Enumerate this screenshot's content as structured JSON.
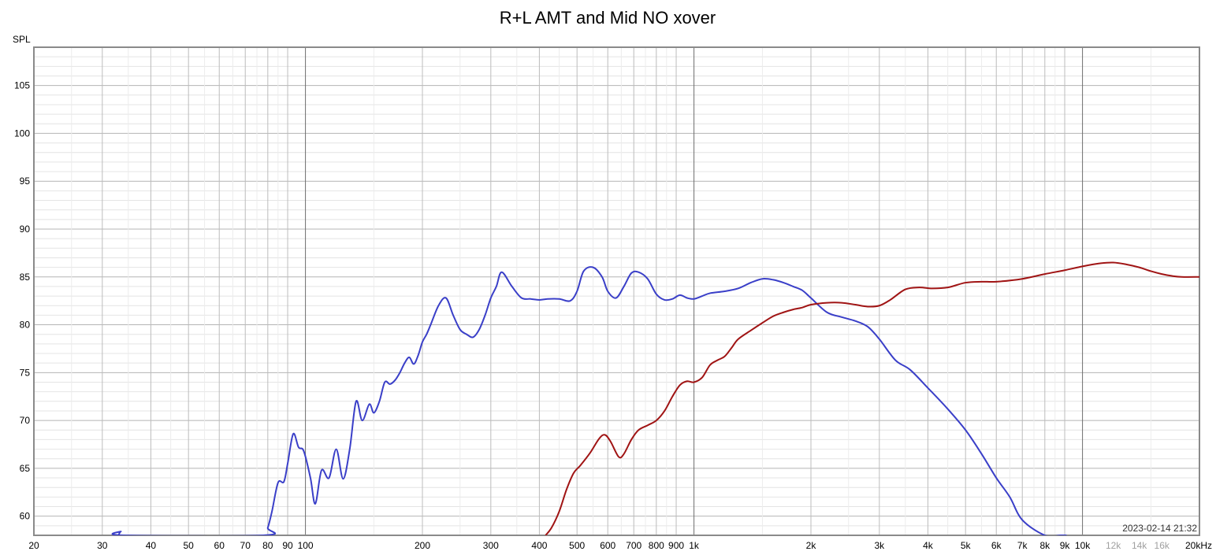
{
  "chart_data": {
    "type": "line",
    "title": "R+L AMT and Mid NO xover",
    "ylabel": "SPL",
    "xlabel": "",
    "x_scale": "log",
    "xlim": [
      20,
      20000
    ],
    "ylim": [
      58,
      109
    ],
    "grid": true,
    "timestamp": "2023-02-14 21:32",
    "y_ticks": [
      {
        "value": 60,
        "label": "60"
      },
      {
        "value": 65,
        "label": "65"
      },
      {
        "value": 70,
        "label": "70"
      },
      {
        "value": 75,
        "label": "75"
      },
      {
        "value": 80,
        "label": "80"
      },
      {
        "value": 85,
        "label": "85"
      },
      {
        "value": 90,
        "label": "90"
      },
      {
        "value": 95,
        "label": "95"
      },
      {
        "value": 100,
        "label": "100"
      },
      {
        "value": 105,
        "label": "105"
      }
    ],
    "x_ticks": [
      {
        "value": 20,
        "label": "20"
      },
      {
        "value": 30,
        "label": "30"
      },
      {
        "value": 40,
        "label": "40"
      },
      {
        "value": 50,
        "label": "50"
      },
      {
        "value": 60,
        "label": "60"
      },
      {
        "value": 70,
        "label": "70"
      },
      {
        "value": 80,
        "label": "80"
      },
      {
        "value": 90,
        "label": "90"
      },
      {
        "value": 100,
        "label": "100"
      },
      {
        "value": 200,
        "label": "200"
      },
      {
        "value": 300,
        "label": "300"
      },
      {
        "value": 400,
        "label": "400"
      },
      {
        "value": 500,
        "label": "500"
      },
      {
        "value": 600,
        "label": "600"
      },
      {
        "value": 700,
        "label": "700"
      },
      {
        "value": 800,
        "label": "800"
      },
      {
        "value": 900,
        "label": "900"
      },
      {
        "value": 1000,
        "label": "1k"
      },
      {
        "value": 2000,
        "label": "2k"
      },
      {
        "value": 3000,
        "label": "3k"
      },
      {
        "value": 4000,
        "label": "4k"
      },
      {
        "value": 5000,
        "label": "5k"
      },
      {
        "value": 6000,
        "label": "6k"
      },
      {
        "value": 7000,
        "label": "7k"
      },
      {
        "value": 8000,
        "label": "8k"
      },
      {
        "value": 9000,
        "label": "9k"
      },
      {
        "value": 10000,
        "label": "10k"
      },
      {
        "value": 12000,
        "label": "12k",
        "muted": true
      },
      {
        "value": 14000,
        "label": "14k",
        "muted": true
      },
      {
        "value": 16000,
        "label": "16k",
        "muted": true
      },
      {
        "value": 20000,
        "label": "20kHz"
      }
    ],
    "series": [
      {
        "color": "#3a3fc8",
        "x": [
          33,
          33.5,
          34,
          78,
          80,
          82,
          85,
          88,
          90,
          93,
          96,
          99,
          103,
          106,
          110,
          115,
          120,
          125,
          130,
          135,
          140,
          146,
          150,
          155,
          160,
          165,
          170,
          175,
          180,
          185,
          190,
          195,
          200,
          205,
          210,
          220,
          230,
          240,
          250,
          260,
          270,
          280,
          290,
          300,
          310,
          320,
          340,
          360,
          380,
          400,
          420,
          450,
          480,
          500,
          520,
          550,
          580,
          600,
          630,
          660,
          690,
          720,
          760,
          800,
          840,
          880,
          920,
          960,
          1000,
          1050,
          1100,
          1200,
          1300,
          1400,
          1500,
          1600,
          1700,
          1800,
          1900,
          2000,
          2200,
          2400,
          2600,
          2800,
          3000,
          3300,
          3600,
          4000,
          4500,
          5000,
          5500,
          6000,
          6500,
          7000,
          8000,
          8800,
          9100
        ],
        "y": [
          58,
          58.4,
          58,
          58,
          58.8,
          60.5,
          63.5,
          63.6,
          65.5,
          68.6,
          67.2,
          66.8,
          64.0,
          61.3,
          64.8,
          64.0,
          67.0,
          63.9,
          67.0,
          72.0,
          70.0,
          71.7,
          70.8,
          72.0,
          74.0,
          73.8,
          74.2,
          75.0,
          76.0,
          76.6,
          75.9,
          76.8,
          78.2,
          79.0,
          80.0,
          82.0,
          82.8,
          81.0,
          79.5,
          79.0,
          78.7,
          79.5,
          81.0,
          82.8,
          84.0,
          85.5,
          84.0,
          82.8,
          82.7,
          82.6,
          82.7,
          82.7,
          82.5,
          83.5,
          85.6,
          86.0,
          85.0,
          83.5,
          82.8,
          84.0,
          85.4,
          85.5,
          84.8,
          83.2,
          82.6,
          82.7,
          83.1,
          82.8,
          82.7,
          83.0,
          83.3,
          83.5,
          83.8,
          84.4,
          84.8,
          84.7,
          84.4,
          84.0,
          83.6,
          82.8,
          81.3,
          80.8,
          80.4,
          79.8,
          78.5,
          76.3,
          75.3,
          73.4,
          71.2,
          69.0,
          66.5,
          64.0,
          62.0,
          59.6,
          58.0,
          58,
          58
        ]
      },
      {
        "color": "#a01414",
        "x": [
          415,
          430,
          450,
          470,
          490,
          510,
          540,
          570,
          590,
          610,
          640,
          660,
          690,
          720,
          760,
          800,
          840,
          880,
          920,
          960,
          1000,
          1050,
          1100,
          1150,
          1200,
          1250,
          1300,
          1400,
          1500,
          1600,
          1700,
          1800,
          1900,
          2000,
          2200,
          2400,
          2600,
          2800,
          3000,
          3200,
          3500,
          3800,
          4100,
          4500,
          5000,
          5500,
          6000,
          7000,
          8000,
          9000,
          10000,
          11000,
          12000,
          13000,
          14000,
          15000,
          16000,
          17000,
          18000,
          20000
        ],
        "y": [
          58,
          58.8,
          60.5,
          62.8,
          64.5,
          65.3,
          66.6,
          68.1,
          68.5,
          67.8,
          66.2,
          66.5,
          68.0,
          69.0,
          69.5,
          70.0,
          71.0,
          72.5,
          73.7,
          74.1,
          74.0,
          74.5,
          75.8,
          76.3,
          76.7,
          77.6,
          78.5,
          79.4,
          80.2,
          80.9,
          81.3,
          81.6,
          81.8,
          82.1,
          82.3,
          82.3,
          82.1,
          81.9,
          82.0,
          82.6,
          83.7,
          83.9,
          83.8,
          83.9,
          84.4,
          84.5,
          84.5,
          84.8,
          85.3,
          85.7,
          86.1,
          86.4,
          86.5,
          86.3,
          86.0,
          85.6,
          85.3,
          85.1,
          85.0,
          85.0
        ]
      }
    ]
  }
}
